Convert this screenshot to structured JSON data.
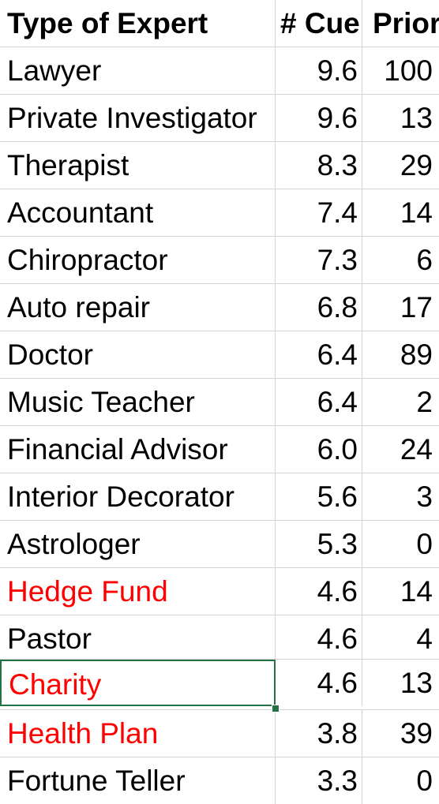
{
  "header": {
    "type": "Type of Expert",
    "cues": "# Cue",
    "prior": "Prior"
  },
  "rows": [
    {
      "type": "Lawyer",
      "cues": "9.6",
      "prior": "100",
      "color": "#000000"
    },
    {
      "type": "Private Investigator",
      "cues": "9.6",
      "prior": "13",
      "color": "#000000"
    },
    {
      "type": "Therapist",
      "cues": "8.3",
      "prior": "29",
      "color": "#000000"
    },
    {
      "type": "Accountant",
      "cues": "7.4",
      "prior": "14",
      "color": "#000000"
    },
    {
      "type": "Chiropractor",
      "cues": "7.3",
      "prior": "6",
      "color": "#000000"
    },
    {
      "type": "Auto repair",
      "cues": "6.8",
      "prior": "17",
      "color": "#000000"
    },
    {
      "type": "Doctor",
      "cues": "6.4",
      "prior": "89",
      "color": "#000000"
    },
    {
      "type": "Music Teacher",
      "cues": "6.4",
      "prior": "2",
      "color": "#000000"
    },
    {
      "type": "Financial Advisor",
      "cues": "6.0",
      "prior": "24",
      "color": "#000000"
    },
    {
      "type": "Interior Decorator",
      "cues": "5.6",
      "prior": "3",
      "color": "#000000"
    },
    {
      "type": "Astrologer",
      "cues": "5.3",
      "prior": "0",
      "color": "#000000"
    },
    {
      "type": "Hedge Fund",
      "cues": "4.6",
      "prior": "14",
      "color": "#ff0000"
    },
    {
      "type": "Pastor",
      "cues": "4.6",
      "prior": "4",
      "color": "#000000"
    },
    {
      "type": "Charity",
      "cues": "4.6",
      "prior": "13",
      "color": "#ff0000"
    },
    {
      "type": "Health Plan",
      "cues": "3.8",
      "prior": "39",
      "color": "#ff0000"
    },
    {
      "type": "Fortune Teller",
      "cues": "3.3",
      "prior": "0",
      "color": "#000000"
    }
  ],
  "selection": {
    "row_index": 13,
    "accent": "#217346"
  }
}
